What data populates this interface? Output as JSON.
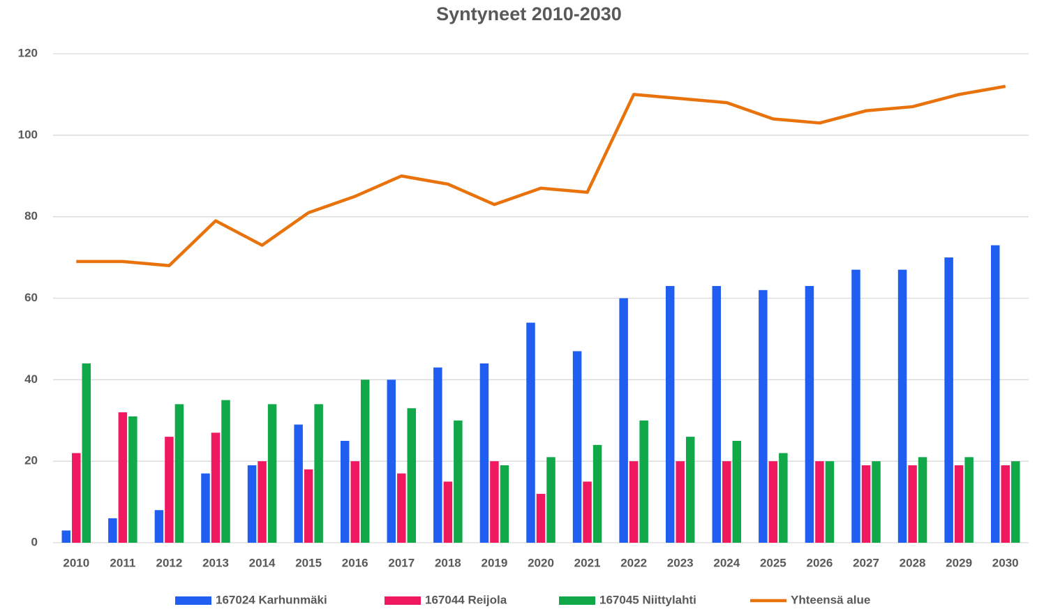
{
  "chart_data": {
    "type": "bar",
    "title": "Syntyneet 2010-2030",
    "categories": [
      "2010",
      "2011",
      "2012",
      "2013",
      "2014",
      "2015",
      "2016",
      "2017",
      "2018",
      "2019",
      "2020",
      "2021",
      "2022",
      "2023",
      "2024",
      "2025",
      "2026",
      "2027",
      "2028",
      "2029",
      "2030"
    ],
    "series": [
      {
        "name": "167024 Karhunmäki",
        "color": "#1f5ef0",
        "values": [
          3,
          6,
          8,
          17,
          19,
          29,
          25,
          40,
          43,
          44,
          54,
          47,
          60,
          63,
          63,
          62,
          63,
          67,
          67,
          70,
          73
        ]
      },
      {
        "name": "167044 Reijola",
        "color": "#f0185e",
        "values": [
          22,
          32,
          26,
          27,
          20,
          18,
          20,
          17,
          15,
          20,
          12,
          15,
          20,
          20,
          20,
          20,
          20,
          19,
          19,
          19,
          19
        ]
      },
      {
        "name": "167045 Niittylahti",
        "color": "#11a84a",
        "values": [
          44,
          31,
          34,
          35,
          34,
          34,
          40,
          33,
          30,
          19,
          21,
          24,
          30,
          26,
          25,
          22,
          20,
          20,
          21,
          21,
          20
        ]
      },
      {
        "name": "Yhteensä alue",
        "color": "#e8730c",
        "type": "line",
        "values": [
          69,
          69,
          68,
          79,
          73,
          81,
          85,
          90,
          88,
          83,
          87,
          86,
          110,
          109,
          108,
          104,
          103,
          106,
          107,
          110,
          112
        ]
      }
    ],
    "ylim": [
      0,
      120
    ],
    "yticks": [
      0,
      20,
      40,
      60,
      80,
      100,
      120
    ],
    "grid": true,
    "legend": "bottom"
  }
}
